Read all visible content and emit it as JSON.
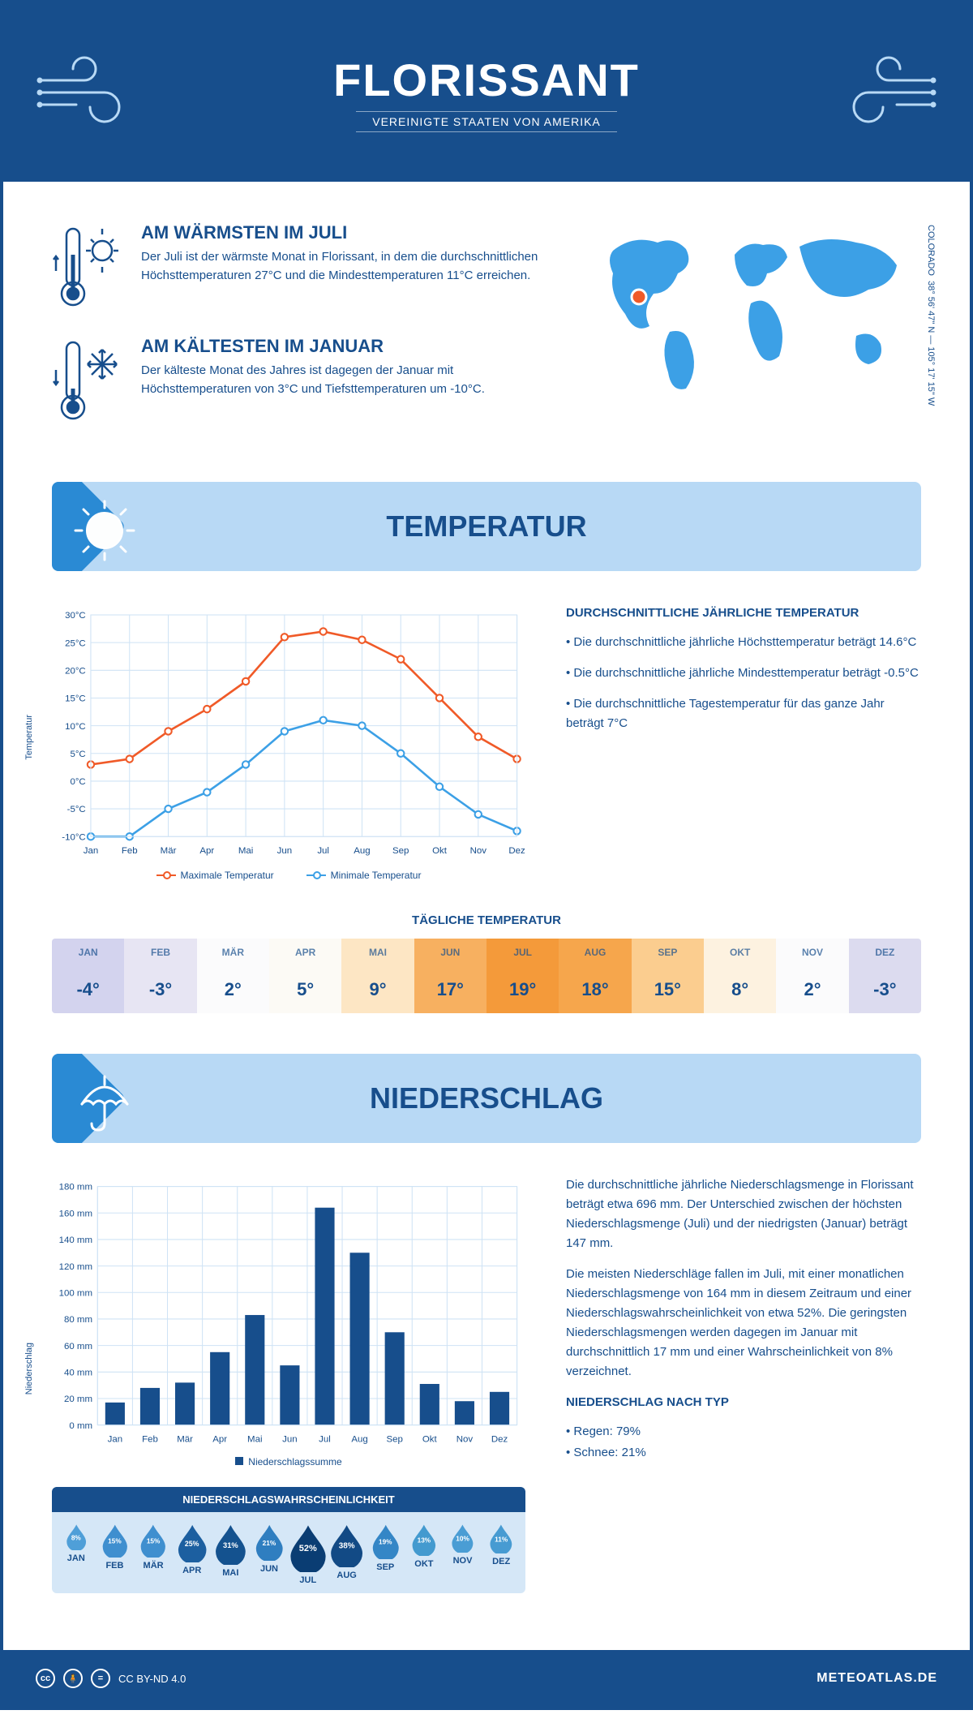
{
  "header": {
    "title": "FLORISSANT",
    "subtitle": "VEREINIGTE STAATEN VON AMERIKA"
  },
  "coords": {
    "text": "38° 56' 47\" N — 105° 17' 15\" W",
    "region": "COLORADO"
  },
  "hot": {
    "title": "AM WÄRMSTEN IM JULI",
    "text": "Der Juli ist der wärmste Monat in Florissant, in dem die durchschnittlichen Höchsttemperaturen 27°C und die Mindesttemperaturen 11°C erreichen."
  },
  "cold": {
    "title": "AM KÄLTESTEN IM JANUAR",
    "text": "Der kälteste Monat des Jahres ist dagegen der Januar mit Höchsttemperaturen von 3°C und Tiefsttemperaturen um -10°C."
  },
  "temp_section": {
    "title": "TEMPERATUR",
    "side_title": "DURCHSCHNITTLICHE JÄHRLICHE TEMPERATUR",
    "b1": "• Die durchschnittliche jährliche Höchsttemperatur beträgt 14.6°C",
    "b2": "• Die durchschnittliche jährliche Mindesttemperatur beträgt -0.5°C",
    "b3": "• Die durchschnittliche Tagestemperatur für das ganze Jahr beträgt 7°C",
    "chart": {
      "type": "line",
      "months": [
        "Jan",
        "Feb",
        "Mär",
        "Apr",
        "Mai",
        "Jun",
        "Jul",
        "Aug",
        "Sep",
        "Okt",
        "Nov",
        "Dez"
      ],
      "max_series": [
        3,
        4,
        9,
        13,
        18,
        26,
        27,
        25.5,
        22,
        15,
        8,
        4
      ],
      "min_series": [
        -10,
        -10,
        -5,
        -2,
        3,
        9,
        11,
        10,
        5,
        -1,
        -6,
        -9
      ],
      "max_color": "#f05a28",
      "min_color": "#3ca0e6",
      "ylim": [
        -10,
        30
      ],
      "ytick_step": 5,
      "grid_color": "#cfe3f5",
      "ylabel": "Temperatur",
      "legend_max": "Maximale Temperatur",
      "legend_min": "Minimale Temperatur"
    },
    "daily": {
      "title": "TÄGLICHE TEMPERATUR",
      "months": [
        "JAN",
        "FEB",
        "MÄR",
        "APR",
        "MAI",
        "JUN",
        "JUL",
        "AUG",
        "SEP",
        "OKT",
        "NOV",
        "DEZ"
      ],
      "values": [
        "-4°",
        "-3°",
        "2°",
        "5°",
        "9°",
        "17°",
        "19°",
        "18°",
        "15°",
        "8°",
        "2°",
        "-3°"
      ],
      "cell_bg": [
        "#d3d3ee",
        "#e7e5f3",
        "#fbfbfc",
        "#fcfaf5",
        "#fde6c4",
        "#f7b060",
        "#f49a3a",
        "#f6a64c",
        "#fbcd8f",
        "#fdf2e0",
        "#fbfbfc",
        "#dcdbef"
      ],
      "text_color": "#174e8c"
    }
  },
  "precip_section": {
    "title": "NIEDERSCHLAG",
    "p1": "Die durchschnittliche jährliche Niederschlagsmenge in Florissant beträgt etwa 696 mm. Der Unterschied zwischen der höchsten Niederschlagsmenge (Juli) und der niedrigsten (Januar) beträgt 147 mm.",
    "p2": "Die meisten Niederschläge fallen im Juli, mit einer monatlichen Niederschlagsmenge von 164 mm in diesem Zeitraum und einer Niederschlagswahrscheinlichkeit von etwa 52%. Die geringsten Niederschlagsmengen werden dagegen im Januar mit durchschnittlich 17 mm und einer Wahrscheinlichkeit von 8% verzeichnet.",
    "type_title": "NIEDERSCHLAG NACH TYP",
    "type_rain": "• Regen: 79%",
    "type_snow": "• Schnee: 21%",
    "chart": {
      "type": "bar",
      "months": [
        "Jan",
        "Feb",
        "Mär",
        "Apr",
        "Mai",
        "Jun",
        "Jul",
        "Aug",
        "Sep",
        "Okt",
        "Nov",
        "Dez"
      ],
      "values": [
        17,
        28,
        32,
        55,
        83,
        45,
        164,
        130,
        70,
        31,
        18,
        25
      ],
      "bar_color": "#174e8c",
      "grid_color": "#cfe3f5",
      "ylim": [
        0,
        180
      ],
      "ytick_step": 20,
      "ylabel": "Niederschlag",
      "legend": "Niederschlagssumme"
    },
    "prob": {
      "title": "NIEDERSCHLAGSWAHRSCHEINLICHKEIT",
      "months": [
        "JAN",
        "FEB",
        "MÄR",
        "APR",
        "MAI",
        "JUN",
        "JUL",
        "AUG",
        "SEP",
        "OKT",
        "NOV",
        "DEZ"
      ],
      "values": [
        "8%",
        "15%",
        "15%",
        "25%",
        "31%",
        "21%",
        "52%",
        "38%",
        "19%",
        "13%",
        "10%",
        "11%"
      ],
      "scales": [
        0.55,
        0.7,
        0.7,
        0.8,
        0.85,
        0.76,
        1.0,
        0.9,
        0.74,
        0.66,
        0.6,
        0.62
      ],
      "colors": [
        "#4f9fd8",
        "#3f8fcf",
        "#3f8fcf",
        "#1c5fa0",
        "#14528f",
        "#2f7ec0",
        "#0a3d73",
        "#124a85",
        "#3486c6",
        "#439acf",
        "#4a9dd4",
        "#479bd2"
      ]
    }
  },
  "footer": {
    "license": "CC BY-ND 4.0",
    "brand": "METEOATLAS.DE"
  }
}
